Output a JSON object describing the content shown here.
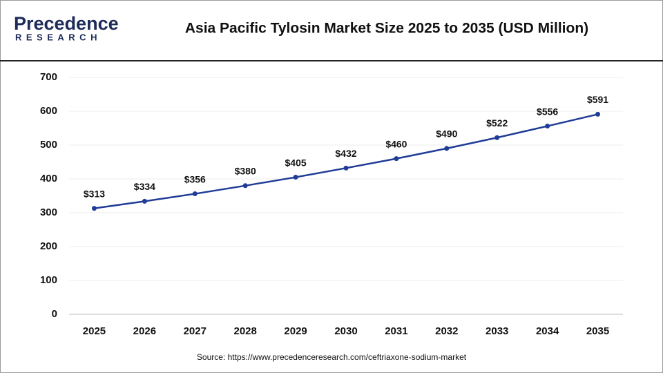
{
  "logo": {
    "name": "Precedence",
    "tagline": "RESEARCH"
  },
  "chart_data": {
    "type": "line",
    "title": "Asia Pacific Tylosin Market Size 2025 to 2035 (USD Million)",
    "categories": [
      "2025",
      "2026",
      "2027",
      "2028",
      "2029",
      "2030",
      "2031",
      "2032",
      "2033",
      "2034",
      "2035"
    ],
    "values": [
      313,
      334,
      356,
      380,
      405,
      432,
      460,
      490,
      522,
      556,
      591
    ],
    "value_labels": [
      "$313",
      "$334",
      "$356",
      "$380",
      "$405",
      "$432",
      "$460",
      "$490",
      "$522",
      "$556",
      "$591"
    ],
    "color": "#1f3c96",
    "ylim": [
      0,
      700
    ],
    "yticks": [
      0,
      100,
      200,
      300,
      400,
      500,
      600,
      700
    ],
    "grid": true,
    "source": "Source: https://www.precedenceresearch.com/ceftriaxone-sodium-market"
  }
}
